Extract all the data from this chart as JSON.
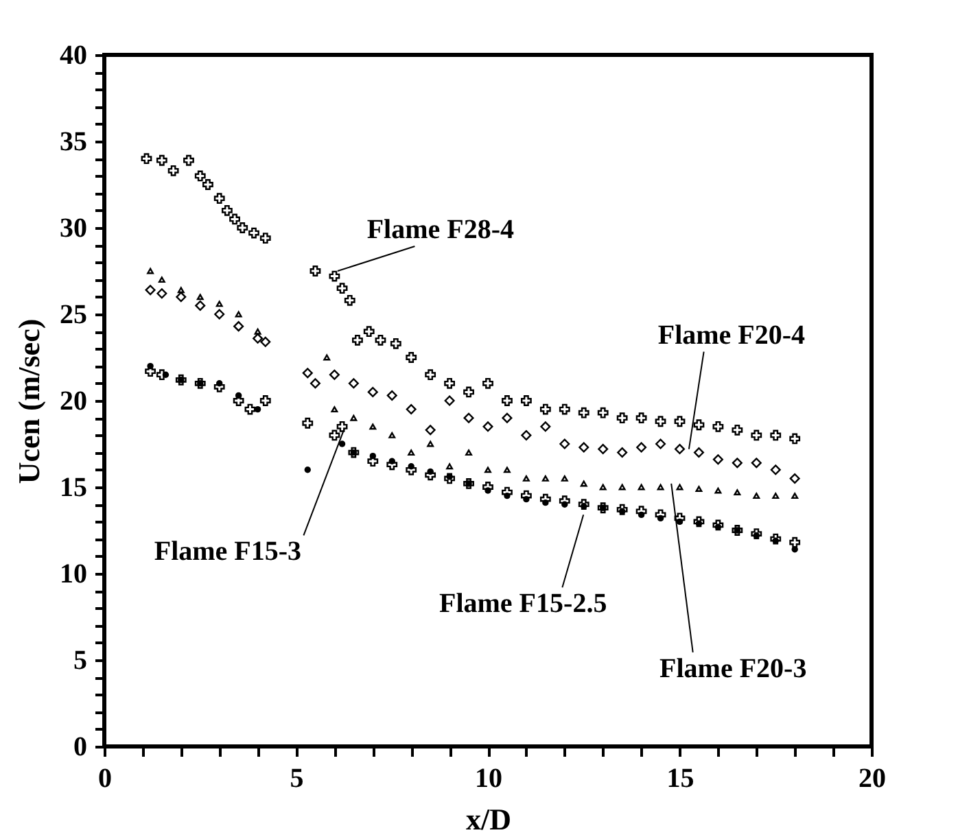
{
  "chart_data": {
    "type": "scatter",
    "xlabel": "x/D",
    "ylabel": "Ucen (m/sec)",
    "xlim": [
      0,
      20
    ],
    "ylim": [
      0,
      40
    ],
    "xticks": [
      0,
      {
        "value": 1,
        "label": null
      },
      {
        "value": 2,
        "label": null
      },
      {
        "value": 3,
        "label": null
      },
      {
        "value": 4,
        "label": null
      },
      5,
      {
        "value": 6,
        "label": null
      },
      {
        "value": 7,
        "label": null
      },
      {
        "value": 8,
        "label": null
      },
      {
        "value": 9,
        "label": null
      },
      10,
      {
        "value": 11,
        "label": null
      },
      {
        "value": 12,
        "label": null
      },
      {
        "value": 13,
        "label": null
      },
      {
        "value": 14,
        "label": null
      },
      15,
      {
        "value": 16,
        "label": null
      },
      {
        "value": 17,
        "label": null
      },
      {
        "value": 18,
        "label": null
      },
      {
        "value": 19,
        "label": null
      },
      20
    ],
    "yticks": [
      0,
      {
        "value": 1,
        "label": null
      },
      {
        "value": 2,
        "label": null
      },
      {
        "value": 3,
        "label": null
      },
      {
        "value": 4,
        "label": null
      },
      5,
      {
        "value": 6,
        "label": null
      },
      {
        "value": 7,
        "label": null
      },
      {
        "value": 8,
        "label": null
      },
      {
        "value": 9,
        "label": null
      },
      10,
      {
        "value": 11,
        "label": null
      },
      {
        "value": 12,
        "label": null
      },
      {
        "value": 13,
        "label": null
      },
      {
        "value": 14,
        "label": null
      },
      15,
      {
        "value": 16,
        "label": null
      },
      {
        "value": 17,
        "label": null
      },
      {
        "value": 18,
        "label": null
      },
      {
        "value": 19,
        "label": null
      },
      20,
      {
        "value": 21,
        "label": null
      },
      {
        "value": 22,
        "label": null
      },
      {
        "value": 23,
        "label": null
      },
      {
        "value": 24,
        "label": null
      },
      25,
      {
        "value": 26,
        "label": null
      },
      {
        "value": 27,
        "label": null
      },
      {
        "value": 28,
        "label": null
      },
      {
        "value": 29,
        "label": null
      },
      30,
      {
        "value": 31,
        "label": null
      },
      {
        "value": 32,
        "label": null
      },
      {
        "value": 33,
        "label": null
      },
      {
        "value": 34,
        "label": null
      },
      35,
      {
        "value": 36,
        "label": null
      },
      {
        "value": 37,
        "label": null
      },
      {
        "value": 38,
        "label": null
      },
      {
        "value": 39,
        "label": null
      },
      40
    ],
    "grid": false,
    "series": [
      {
        "color": "#000000",
        "marker": "cross",
        "x": [
          1.1,
          1.5,
          1.8,
          2.2,
          2.5,
          2.7,
          3.0,
          3.2,
          3.4,
          3.6,
          3.9,
          4.2,
          5.5,
          6.0,
          6.2,
          6.4,
          6.6,
          6.9,
          7.2,
          7.6,
          8.0,
          8.5,
          9.0,
          9.5,
          10.0,
          10.5,
          11.0,
          11.5,
          12.0,
          12.5,
          13.0,
          13.5,
          14.0,
          14.5,
          15.0,
          15.5,
          16.0,
          16.5,
          17.0,
          17.5,
          18.0
        ],
        "values": [
          34.0,
          33.9,
          33.3,
          33.9,
          33.0,
          32.5,
          31.7,
          31.0,
          30.5,
          30.0,
          29.7,
          29.4,
          27.5,
          27.2,
          26.5,
          25.8,
          23.5,
          24.0,
          23.5,
          23.3,
          22.5,
          21.5,
          21.0,
          20.5,
          21.0,
          20.0,
          20.0,
          19.5,
          19.5,
          19.3,
          19.3,
          19.0,
          19.0,
          18.8,
          18.8,
          18.6,
          18.5,
          18.3,
          18.0,
          18.0,
          17.8
        ]
      },
      {
        "color": "#000000",
        "marker": "diamond",
        "x": [
          1.2,
          1.5,
          2.0,
          2.5,
          3.0,
          3.5,
          4.0,
          4.2,
          5.3,
          5.5,
          6.0,
          6.5,
          7.0,
          7.5,
          8.0,
          8.5,
          9.0,
          9.5,
          10.0,
          10.5,
          11.0,
          11.5,
          12.0,
          12.5,
          13.0,
          13.5,
          14.0,
          14.5,
          15.0,
          15.5,
          16.0,
          16.5,
          17.0,
          17.5,
          18.0
        ],
        "values": [
          26.4,
          26.2,
          26.0,
          25.5,
          25.0,
          24.3,
          23.6,
          23.4,
          21.6,
          21.0,
          21.5,
          21.0,
          20.5,
          20.3,
          19.5,
          18.3,
          20.0,
          19.0,
          18.5,
          19.0,
          18.0,
          18.5,
          17.5,
          17.3,
          17.2,
          17.0,
          17.3,
          17.5,
          17.2,
          17.0,
          16.6,
          16.4,
          16.4,
          16.0,
          15.5
        ]
      },
      {
        "color": "#000000",
        "marker": "triangle",
        "x": [
          1.2,
          1.5,
          2.0,
          2.5,
          3.0,
          3.5,
          4.0,
          5.8,
          6.0,
          6.5,
          7.0,
          7.5,
          8.0,
          8.5,
          9.0,
          9.5,
          10.0,
          10.5,
          11.0,
          11.5,
          12.0,
          12.5,
          13.0,
          13.5,
          14.0,
          14.5,
          15.0,
          15.5,
          16.0,
          16.5,
          17.0,
          17.5,
          18.0
        ],
        "values": [
          27.5,
          27.0,
          26.4,
          26.0,
          25.6,
          25.0,
          24.0,
          22.5,
          19.5,
          19.0,
          18.5,
          18.0,
          17.0,
          17.5,
          16.2,
          17.0,
          16.0,
          16.0,
          15.5,
          15.5,
          15.5,
          15.2,
          15.0,
          15.0,
          15.0,
          15.0,
          15.0,
          14.9,
          14.8,
          14.7,
          14.5,
          14.5,
          14.5
        ]
      },
      {
        "color": "#000000",
        "marker": "cross",
        "x": [
          1.2,
          1.5,
          2.0,
          2.5,
          3.0,
          3.5,
          3.8,
          4.2,
          5.3,
          6.0,
          6.2,
          6.5,
          7.0,
          7.5,
          8.0,
          8.5,
          9.0,
          9.5,
          10.0,
          10.5,
          11.0,
          11.5,
          12.0,
          12.5,
          13.0,
          13.5,
          14.0,
          14.5,
          15.0,
          15.5,
          16.0,
          16.5,
          17.0,
          17.5,
          18.0
        ],
        "values": [
          21.7,
          21.5,
          21.2,
          21.0,
          20.8,
          20.0,
          19.5,
          20.0,
          18.7,
          18.0,
          18.5,
          17.0,
          16.5,
          16.3,
          16.0,
          15.7,
          15.5,
          15.2,
          15.0,
          14.7,
          14.5,
          14.3,
          14.2,
          14.0,
          13.8,
          13.7,
          13.6,
          13.4,
          13.2,
          13.0,
          12.8,
          12.5,
          12.3,
          12.0,
          11.8
        ]
      },
      {
        "color": "#000000",
        "marker": "circle",
        "x": [
          1.2,
          1.6,
          2.0,
          2.5,
          3.0,
          3.5,
          4.0,
          5.3,
          6.2,
          6.5,
          7.0,
          7.5,
          8.0,
          8.5,
          9.0,
          9.5,
          10.0,
          10.5,
          11.0,
          11.5,
          12.0,
          12.5,
          13.0,
          13.5,
          14.0,
          14.5,
          15.0,
          15.5,
          16.0,
          16.5,
          17.0,
          17.5,
          18.0
        ],
        "values": [
          22.0,
          21.5,
          21.2,
          21.0,
          21.0,
          20.3,
          19.5,
          16.0,
          17.5,
          17.0,
          16.8,
          16.5,
          16.2,
          15.9,
          15.6,
          15.2,
          14.8,
          14.5,
          14.3,
          14.1,
          14.0,
          13.9,
          13.8,
          13.6,
          13.4,
          13.2,
          13.0,
          12.9,
          12.7,
          12.5,
          12.2,
          11.9,
          11.4
        ]
      }
    ],
    "annotations": [
      {
        "text": "Flame F28-4",
        "x": 6.08,
        "y": 27.5
      },
      {
        "text": "Flame F20-4",
        "x": 15.24,
        "y": 17.2
      },
      {
        "text": "Flame F20-3",
        "x": 14.78,
        "y": 15.2
      },
      {
        "text": "Flame F15-2.5",
        "x": 12.49,
        "y": 13.4
      },
      {
        "text": "Flame F15-3",
        "x": 6.26,
        "y": 18.4
      }
    ]
  }
}
